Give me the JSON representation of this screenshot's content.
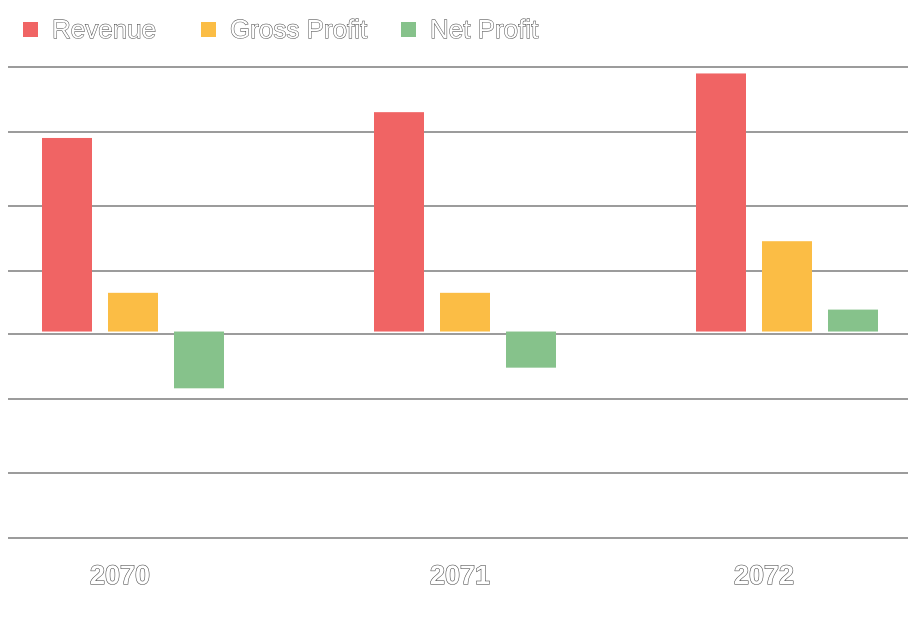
{
  "chart_data": {
    "type": "bar",
    "categories": [
      "2070",
      "2071",
      "2072"
    ],
    "series": [
      {
        "name": "Revenue",
        "color": "#F06464",
        "values": [
          150,
          170,
          200
        ]
      },
      {
        "name": "Gross Profit",
        "color": "#FBBD45",
        "values": [
          30,
          30,
          70
        ]
      },
      {
        "name": "Net Profit",
        "color": "#86C28B",
        "values": [
          -44,
          -28,
          17
        ]
      }
    ],
    "ylim": [
      -160,
      205
    ],
    "grid": true,
    "legend_position": "top-left",
    "title": "",
    "xlabel": "",
    "ylabel": ""
  }
}
